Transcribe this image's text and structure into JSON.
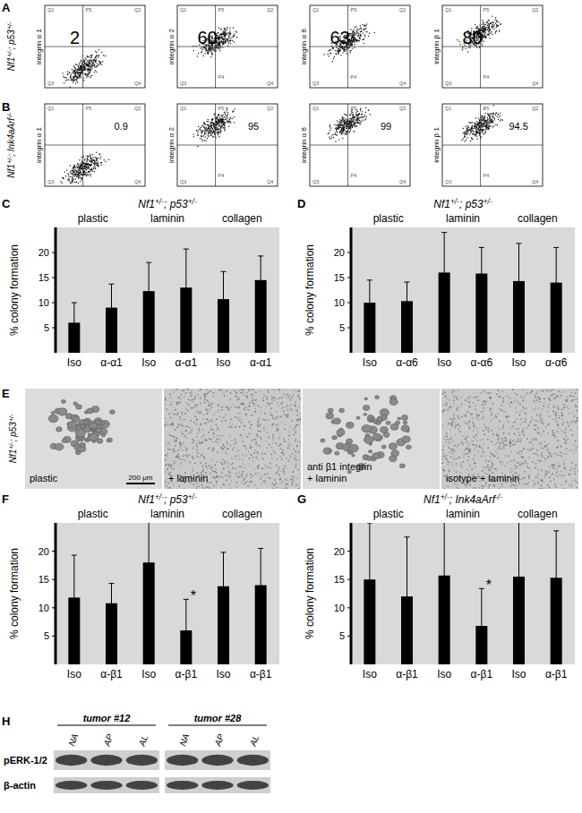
{
  "panel_labels": [
    "A",
    "B",
    "C",
    "D",
    "E",
    "F",
    "G",
    "H"
  ],
  "flow_cytometry": {
    "gate_labels": [
      "Q1",
      "P5",
      "Q2",
      "P4",
      "Q3",
      "Q4"
    ],
    "rows": [
      {
        "row_label": "Nf1+/-; p53+/-",
        "plots": [
          {
            "y_label": "integrin α 1",
            "value": 2
          },
          {
            "y_label": "integrin α 2",
            "value": 60
          },
          {
            "y_label": "integrin α 6",
            "value": 63
          },
          {
            "y_label": "integrin β 1",
            "value": 80
          }
        ]
      },
      {
        "row_label": "Nf1+/-; Ink4aArf-/-",
        "plots": [
          {
            "y_label": "integrin α 1",
            "value": 0.9
          },
          {
            "y_label": "integrin α 2",
            "value": 95
          },
          {
            "y_label": "integrin α 6",
            "value": 99
          },
          {
            "y_label": "integrin β 1",
            "value": 94.5
          }
        ]
      }
    ]
  },
  "chart_data": [
    {
      "type": "bar",
      "title": "Nf1+/-; p53+/-",
      "ylabel": "% colony formation",
      "groups": [
        "plastic",
        "laminin",
        "collagen"
      ],
      "categories": [
        "Iso",
        "α-α1",
        "Iso",
        "α-α1",
        "Iso",
        "α-α1"
      ],
      "values": [
        6,
        9,
        12.3,
        13,
        10.7,
        14.5
      ],
      "errors": [
        4,
        4.7,
        5.7,
        7.7,
        5.5,
        4.8
      ],
      "color": "#000000",
      "ylim": [
        0,
        25
      ],
      "yticks": [
        5,
        10,
        15,
        20
      ]
    },
    {
      "type": "bar",
      "title": "Nf1+/-; p53+/-",
      "ylabel": "% colony formation",
      "groups": [
        "plastic",
        "laminin",
        "collagen"
      ],
      "categories": [
        "Iso",
        "α-α6",
        "Iso",
        "α-α6",
        "Iso",
        "α-α6"
      ],
      "values": [
        10,
        10.3,
        16,
        15.8,
        14.3,
        14
      ],
      "errors": [
        4.5,
        3.8,
        8,
        5.2,
        7.5,
        7
      ],
      "color": "#000000",
      "ylim": [
        0,
        25
      ],
      "yticks": [
        5,
        10,
        15,
        20
      ]
    },
    {
      "type": "bar",
      "title": "Nf1+/-; p53+/-",
      "ylabel": "% colony formation",
      "groups": [
        "plastic",
        "laminin",
        "collagen"
      ],
      "categories": [
        "Iso",
        "α-β1",
        "Iso",
        "α-β1",
        "Iso",
        "α-β1"
      ],
      "values": [
        11.8,
        10.8,
        18,
        6,
        13.8,
        14
      ],
      "errors": [
        7.5,
        3.5,
        8,
        5.5,
        6,
        6.5
      ],
      "color": "#000000",
      "ylim": [
        0,
        25
      ],
      "yticks": [
        5,
        10,
        15,
        20
      ],
      "annotations": [
        {
          "text": "*",
          "category": 3
        }
      ]
    },
    {
      "type": "bar",
      "title": "Nf1+/-; Ink4aArf-/-",
      "ylabel": "% colony formation",
      "groups": [
        "plastic",
        "laminin",
        "collagen"
      ],
      "categories": [
        "Iso",
        "α-β1",
        "Iso",
        "α-β1",
        "Iso",
        "α-β1"
      ],
      "values": [
        15,
        12,
        15.7,
        6.8,
        15.5,
        15.3
      ],
      "errors": [
        10,
        10.5,
        11,
        6.6,
        10,
        8.3
      ],
      "color": "#000000",
      "ylim": [
        0,
        25
      ],
      "yticks": [
        5,
        10,
        15,
        20
      ],
      "annotations": [
        {
          "text": "*",
          "category": 3
        }
      ]
    }
  ],
  "micrographs": {
    "row_label": "Nf1+/-; p53+/-",
    "scale_bar": "200 μm",
    "images": [
      {
        "caption": [
          "plastic"
        ]
      },
      {
        "caption": [
          "+ laminin"
        ]
      },
      {
        "caption": [
          "anti β1 integrin",
          "+ laminin"
        ]
      },
      {
        "caption": [
          "isotype + laminin"
        ]
      }
    ]
  },
  "western_blot": {
    "groups": [
      {
        "label": "tumor #12",
        "lanes": [
          "NA",
          "AP",
          "AL"
        ]
      },
      {
        "label": "tumor #28",
        "lanes": [
          "NA",
          "AP",
          "AL"
        ]
      }
    ],
    "rows": [
      "pERK-1/2",
      "β-actin"
    ]
  }
}
